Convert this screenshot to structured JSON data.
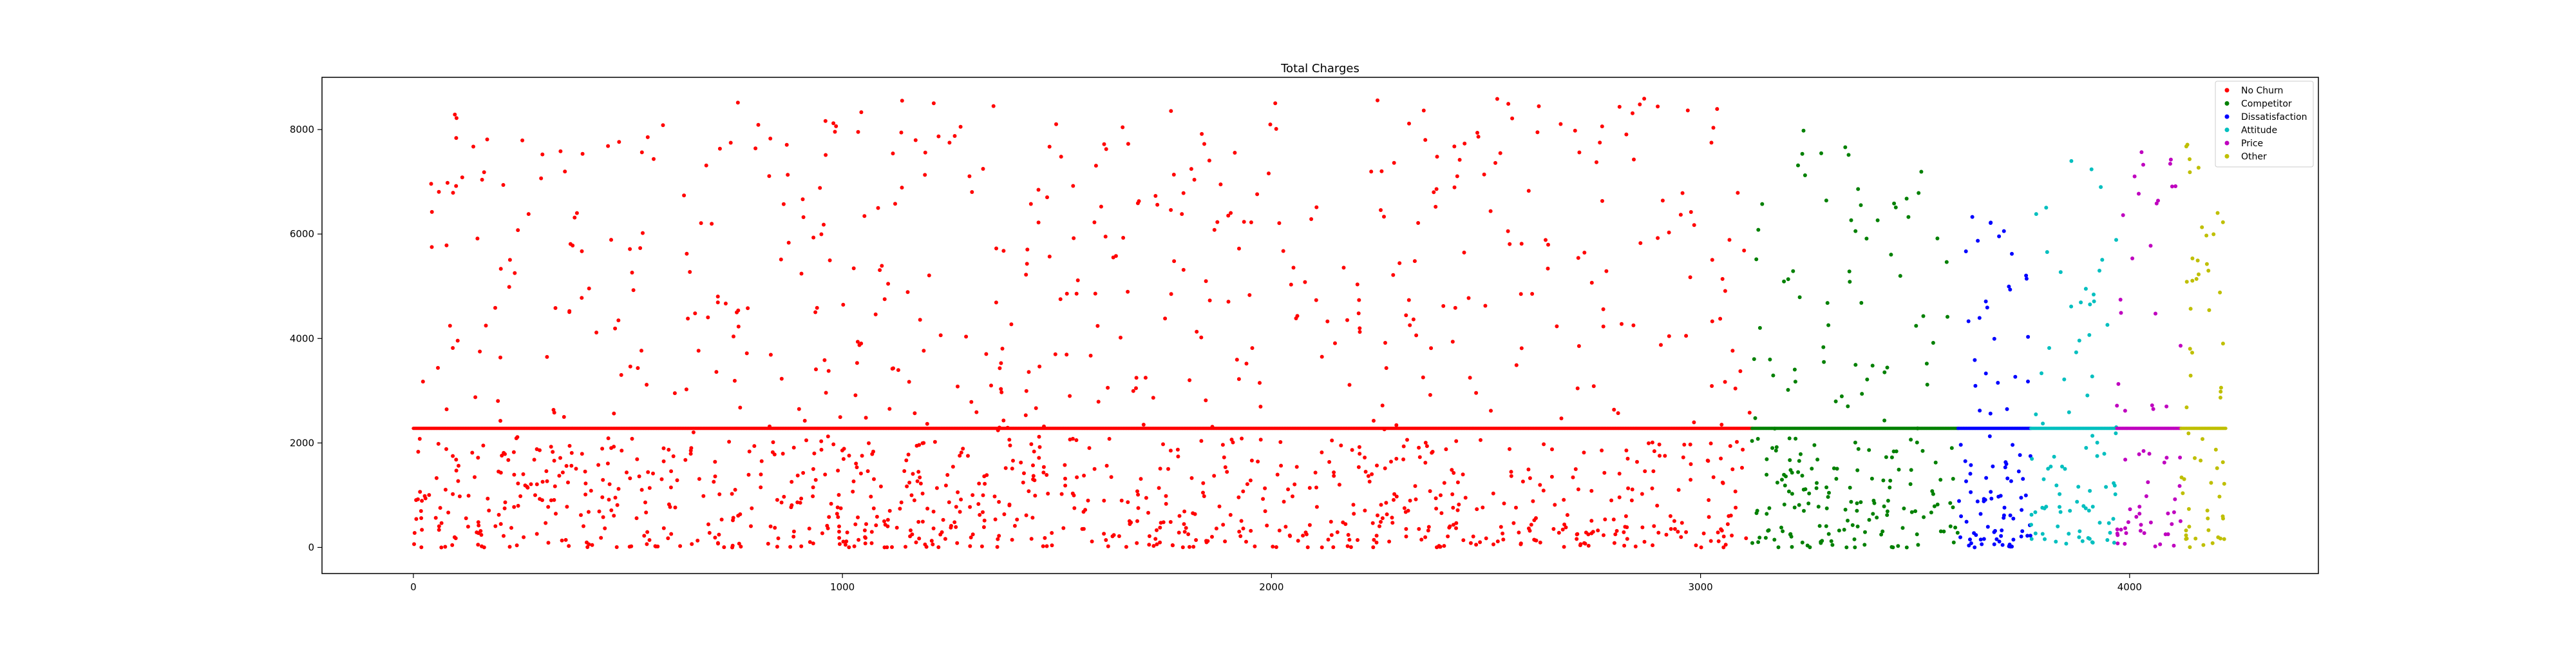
{
  "chart_data": {
    "type": "scatter",
    "title": "Total Charges",
    "xlabel": "",
    "ylabel": "",
    "xlim": [
      -213,
      4440
    ],
    "ylim": [
      -500,
      9000
    ],
    "x_ticks": [
      0,
      1000,
      2000,
      3000,
      4000
    ],
    "y_ticks": [
      0,
      2000,
      4000,
      6000,
      8000
    ],
    "grid": false,
    "legend_position": "top-right",
    "median_fill_value": 2280,
    "series": [
      {
        "name": "No Churn",
        "color": "#ff0000",
        "x_range": [
          0,
          3120
        ],
        "count": 1300,
        "y_max": 8600
      },
      {
        "name": "Competitor",
        "color": "#008000",
        "x_range": [
          3120,
          3600
        ],
        "count": 210,
        "y_max": 8100
      },
      {
        "name": "Dissatisfaction",
        "color": "#0000ff",
        "x_range": [
          3600,
          3770
        ],
        "count": 95,
        "y_max": 6500
      },
      {
        "name": "Attitude",
        "color": "#00bfbf",
        "x_range": [
          3770,
          3970
        ],
        "count": 85,
        "y_max": 7700
      },
      {
        "name": "Price",
        "color": "#bf00bf",
        "x_range": [
          3970,
          4120
        ],
        "count": 60,
        "y_max": 7700
      },
      {
        "name": "Other",
        "color": "#bfbf00",
        "x_range": [
          4120,
          4225
        ],
        "count": 60,
        "y_max": 7800
      }
    ]
  }
}
